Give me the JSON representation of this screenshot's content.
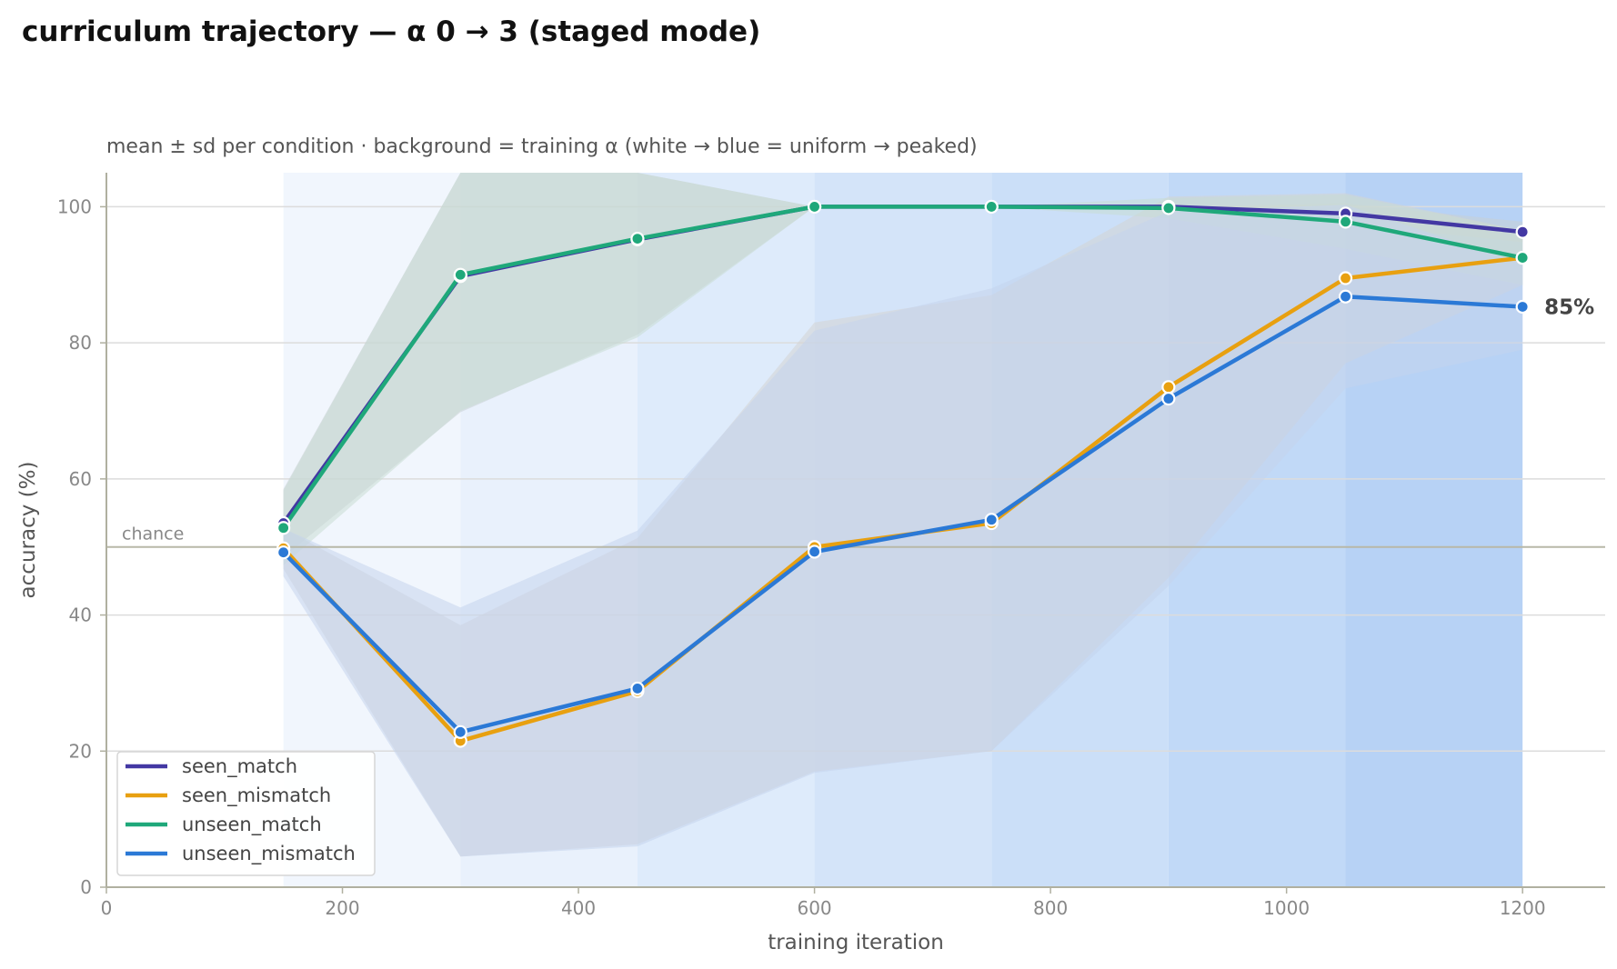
{
  "chart_data": {
    "type": "line",
    "title": "curriculum trajectory — α 0 → 3 (staged mode)",
    "subtitle": "mean ± sd per condition · background = training α (white → blue = uniform → peaked)",
    "xlabel": "training iteration",
    "ylabel": "accuracy (%)",
    "xlim": [
      0,
      1270
    ],
    "ylim": [
      0,
      105
    ],
    "x_ticks": [
      0,
      200,
      400,
      600,
      800,
      1000,
      1200
    ],
    "y_ticks": [
      0,
      20,
      40,
      60,
      80,
      100
    ],
    "grid": "horizontal",
    "legend_position": "lower-left",
    "x": [
      150,
      300,
      450,
      600,
      750,
      900,
      1050,
      1200
    ],
    "series": [
      {
        "name": "seen_match",
        "color": "#4338a3",
        "values": [
          53.5,
          89.8,
          95.2,
          100,
          100,
          100,
          99,
          96.3
        ],
        "sd": [
          5,
          20,
          14,
          0,
          0,
          0,
          1.5,
          1.5
        ]
      },
      {
        "name": "seen_mismatch",
        "color": "#e8a010",
        "values": [
          49.8,
          21.5,
          28.8,
          50,
          53.5,
          73.5,
          89.5,
          92.5
        ],
        "sd": [
          3,
          17,
          22.5,
          33,
          33.5,
          28,
          12.5,
          4
        ]
      },
      {
        "name": "unseen_match",
        "color": "#1fa87a",
        "values": [
          52.8,
          90,
          95.3,
          100,
          100,
          99.8,
          97.8,
          92.5
        ],
        "sd": [
          5.5,
          20,
          14.5,
          0,
          0,
          1.5,
          4,
          4
        ]
      },
      {
        "name": "unseen_mismatch",
        "color": "#2b79d6",
        "values": [
          49.2,
          22.8,
          29.2,
          49.3,
          54,
          71.8,
          86.8,
          85.3
        ],
        "sd": [
          3.5,
          18.3,
          23.2,
          32.5,
          34,
          27.5,
          13.5,
          6.3
        ]
      }
    ],
    "band_colors": [
      "#c8d0d4",
      "#d3d3d3",
      "#c8dcd4",
      "#c4d4ec"
    ],
    "background_bands": [
      {
        "start": 150,
        "end": 300,
        "color": "#f1f6fd"
      },
      {
        "start": 300,
        "end": 450,
        "color": "#e9f1fc"
      },
      {
        "start": 450,
        "end": 600,
        "color": "#deebfb"
      },
      {
        "start": 600,
        "end": 750,
        "color": "#d4e4f9"
      },
      {
        "start": 750,
        "end": 900,
        "color": "#cbdff8"
      },
      {
        "start": 900,
        "end": 1050,
        "color": "#c1d9f7"
      },
      {
        "start": 1050,
        "end": 1200,
        "color": "#b7d2f5"
      }
    ],
    "chance_line": {
      "value": 50,
      "label": "chance"
    },
    "end_annotation": {
      "series": "unseen_mismatch",
      "label": "85%"
    }
  }
}
